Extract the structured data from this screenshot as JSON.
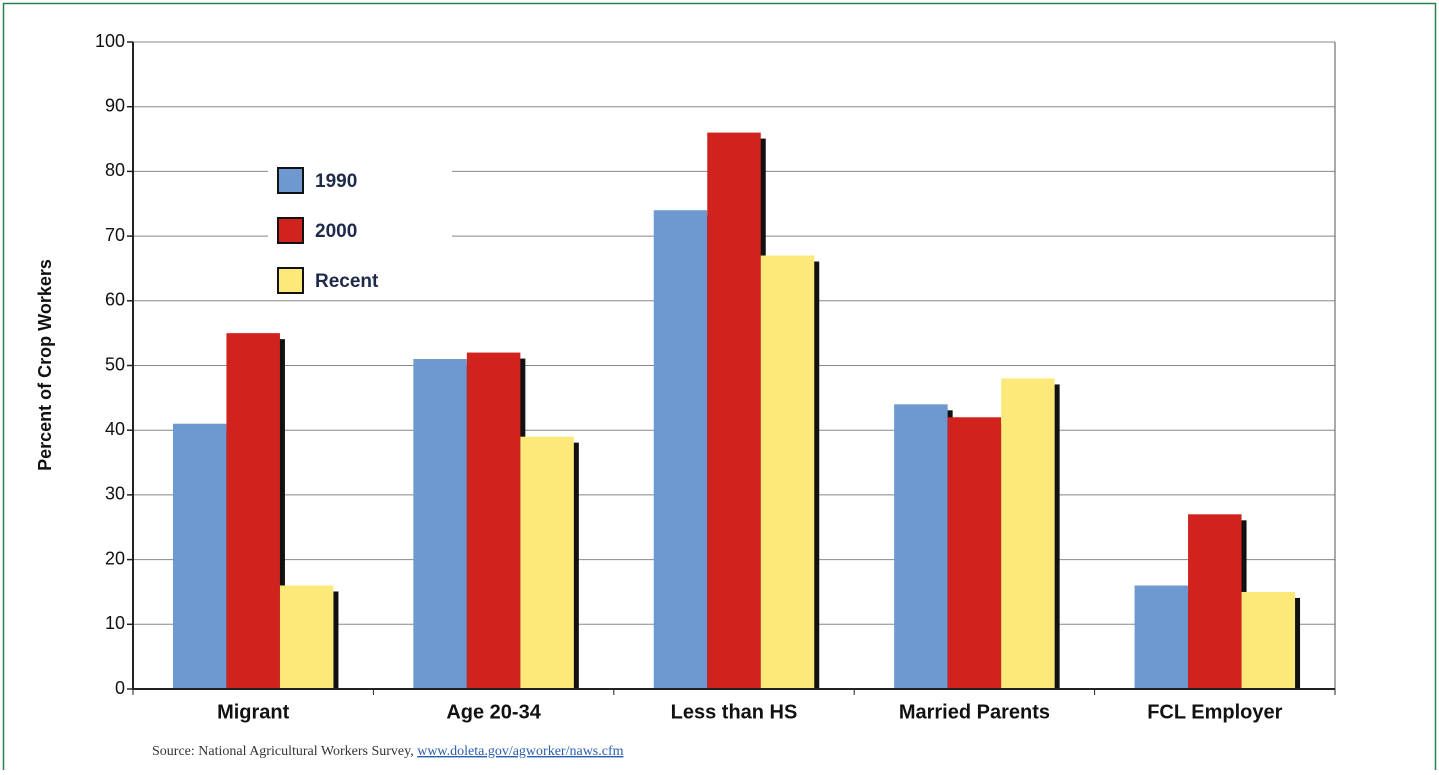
{
  "chart_data": {
    "type": "bar",
    "ylabel": "Percent of Crop Workers",
    "categories": [
      "Migrant",
      "Age 20-34",
      "Less than HS",
      "Married Parents",
      "FCL Employer"
    ],
    "series": [
      {
        "name": "1990",
        "color": "#6e98d0",
        "values": [
          41,
          51,
          74,
          44,
          16
        ]
      },
      {
        "name": "2000",
        "color": "#d0231e",
        "values": [
          55,
          52,
          86,
          42,
          27
        ]
      },
      {
        "name": "Recent",
        "color": "#fde97a",
        "values": [
          16,
          39,
          67,
          48,
          15
        ]
      }
    ],
    "ylim": [
      0,
      100
    ],
    "yticks": [
      0,
      10,
      20,
      30,
      40,
      50,
      60,
      70,
      80,
      90,
      100
    ],
    "grid": true,
    "legend": "upper-left",
    "source": "Source: National Agricultural Workers Survey, ",
    "source_link": "www.doleta.gov/agworker/naws.cfm"
  }
}
